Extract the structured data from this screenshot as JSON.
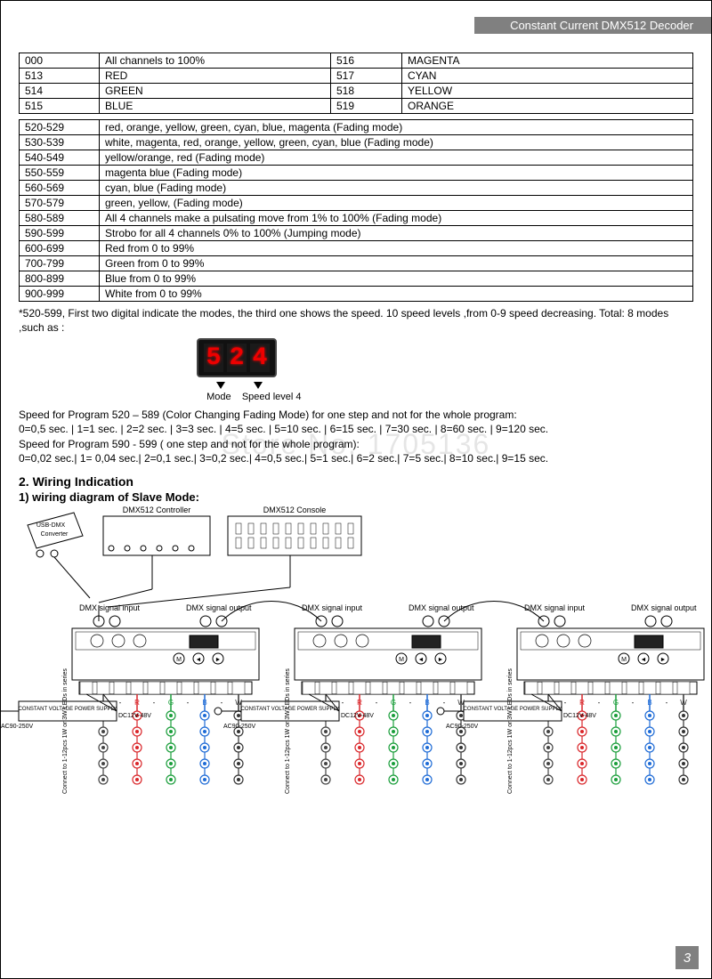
{
  "header": {
    "title": "Constant Current DMX512 Decoder"
  },
  "table1": [
    {
      "c1": "000",
      "d1": "All channels to 100%",
      "c2": "516",
      "d2": "MAGENTA"
    },
    {
      "c1": "513",
      "d1": "RED",
      "c2": "517",
      "d2": "CYAN"
    },
    {
      "c1": "514",
      "d1": "GREEN",
      "c2": "518",
      "d2": "YELLOW"
    },
    {
      "c1": "515",
      "d1": "BLUE",
      "c2": "519",
      "d2": "ORANGE"
    }
  ],
  "table2": [
    {
      "c": "520-529",
      "d": "red, orange, yellow, green, cyan, blue, magenta (Fading mode)"
    },
    {
      "c": "530-539",
      "d": "white, magenta, red, orange, yellow, green, cyan, blue (Fading mode)"
    },
    {
      "c": "540-549",
      "d": "yellow/orange, red (Fading mode)"
    },
    {
      "c": "550-559",
      "d": "magenta blue (Fading mode)"
    },
    {
      "c": "560-569",
      "d": "cyan, blue (Fading mode)"
    },
    {
      "c": "570-579",
      "d": "green, yellow, (Fading mode)"
    },
    {
      "c": "580-589",
      "d": "All 4 channels make a pulsating move from 1% to 100% (Fading mode)"
    },
    {
      "c": "590-599",
      "d": "Strobo for all 4 channels 0% to 100% (Jumping mode)"
    },
    {
      "c": "600-699",
      "d": "Red from 0 to 99%"
    },
    {
      "c": "700-799",
      "d": "Green from 0 to 99%"
    },
    {
      "c": "800-899",
      "d": "Blue from 0 to 99%"
    },
    {
      "c": "900-999",
      "d": "White from 0 to 99%"
    }
  ],
  "note": "*520-599,  First two digital indicate the modes, the third one shows the speed. 10 speed levels ,from 0-9 speed decreasing. Total: 8 modes ,such as :",
  "display": {
    "d1": "5",
    "d2": "2",
    "d3": "4",
    "mode_label": "Mode",
    "speed_label": "Speed level 4"
  },
  "speed": {
    "line1": "Speed for Program 520 – 589 (Color Changing Fading Mode) for one step and not for the whole program:",
    "line2": "0=0,5 sec. | 1=1 sec. | 2=2 sec. | 3=3 sec. | 4=5 sec. | 5=10 sec. | 6=15 sec. | 7=30 sec. | 8=60 sec. | 9=120 sec.",
    "line3": "Speed for Program 590 - 599 ( one step and not for the whole program):",
    "line4": "0=0,02 sec.| 1= 0,04 sec.| 2=0,1 sec.| 3=0,2 sec.| 4=0,5 sec.| 5=1 sec.| 6=2 sec.| 7=5 sec.| 8=10 sec.| 9=15 sec."
  },
  "section2": {
    "title": "2. Wiring Indication",
    "sub": "1)  wiring  diagram of Slave Mode:"
  },
  "diagram": {
    "usb_dmx": "USB-DMX Converter",
    "ctrl": "DMX512 Controller",
    "console": "DMX512 Console",
    "sig_in": "DMX signal input",
    "sig_out": "DMX signal output",
    "psu": "CONSTANT VOLTAGE POWER SUPPLY",
    "ac": "AC90-250V",
    "dc": "DC12V-48V",
    "leds": "Connect to 1-12pcs 1W or 3W LEDs in series",
    "terminals": {
      "plus": "+",
      "r": "R",
      "g": "G",
      "b": "B",
      "w": "W"
    },
    "btns": [
      "M",
      "◄",
      "►"
    ],
    "colors": {
      "r": "#d9262a",
      "g": "#1a9e3b",
      "b": "#1e6bd6",
      "w": "#333",
      "plus": "#444"
    }
  },
  "watermark": "Store No. 1705136",
  "page_num": "3"
}
